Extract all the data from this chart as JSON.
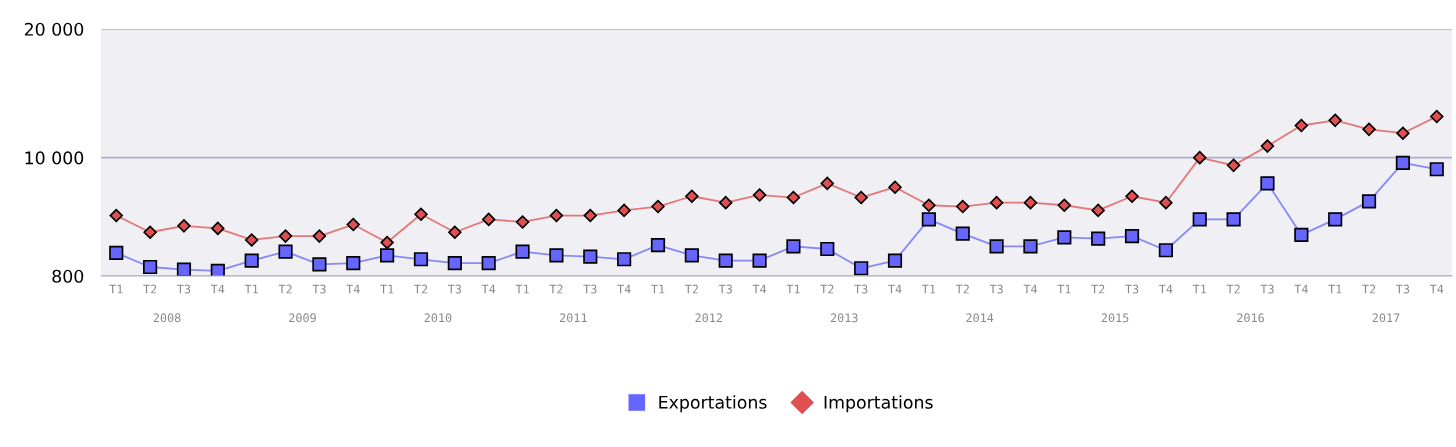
{
  "chart_data": {
    "type": "line",
    "categories": [
      "T1",
      "T2",
      "T3",
      "T4",
      "T1",
      "T2",
      "T3",
      "T4",
      "T1",
      "T2",
      "T3",
      "T4",
      "T1",
      "T2",
      "T3",
      "T4",
      "T1",
      "T2",
      "T3",
      "T4",
      "T1",
      "T2",
      "T3",
      "T4",
      "T1",
      "T2",
      "T3",
      "T4",
      "T1",
      "T2",
      "T3",
      "T4",
      "T1",
      "T2",
      "T3",
      "T4",
      "T1",
      "T2",
      "T3",
      "T4"
    ],
    "series": [
      {
        "name": "Exportations",
        "color": "#6666ff",
        "marker": "square",
        "values": [
          2600,
          1500,
          1300,
          1200,
          2000,
          2700,
          1700,
          1800,
          2400,
          2100,
          1800,
          1800,
          2700,
          2400,
          2300,
          2100,
          3200,
          2400,
          2000,
          2000,
          3100,
          2900,
          1400,
          2000,
          5200,
          4100,
          3100,
          3100,
          3800,
          3700,
          3900,
          2800,
          5200,
          5200,
          8000,
          4000,
          5200,
          6600,
          9600,
          9100
        ]
      },
      {
        "name": "Importations",
        "color": "#e05050",
        "marker": "diamond",
        "values": [
          5500,
          4200,
          4700,
          4500,
          3600,
          3900,
          3900,
          4800,
          3400,
          5600,
          4200,
          5200,
          5000,
          5500,
          5500,
          5900,
          6200,
          7000,
          6500,
          7100,
          6900,
          8000,
          6900,
          7700,
          6300,
          6200,
          6500,
          6500,
          6300,
          5900,
          7000,
          6500,
          10000,
          9400,
          10900,
          12500,
          12900,
          12200,
          11900,
          13200
        ]
      }
    ],
    "ylim": [
      800,
      20000
    ],
    "yticks": [
      800,
      {
        "value": 10000,
        "label": "10 000"
      },
      {
        "value": 20000,
        "label": "20 000"
      }
    ],
    "grid": "y",
    "legend": "bottom",
    "line_style": "solid",
    "annotations": [
      "2008",
      "2009",
      "2010",
      "2011",
      "2012",
      "2013",
      "2014",
      "2015",
      "2016",
      "2017"
    ]
  }
}
